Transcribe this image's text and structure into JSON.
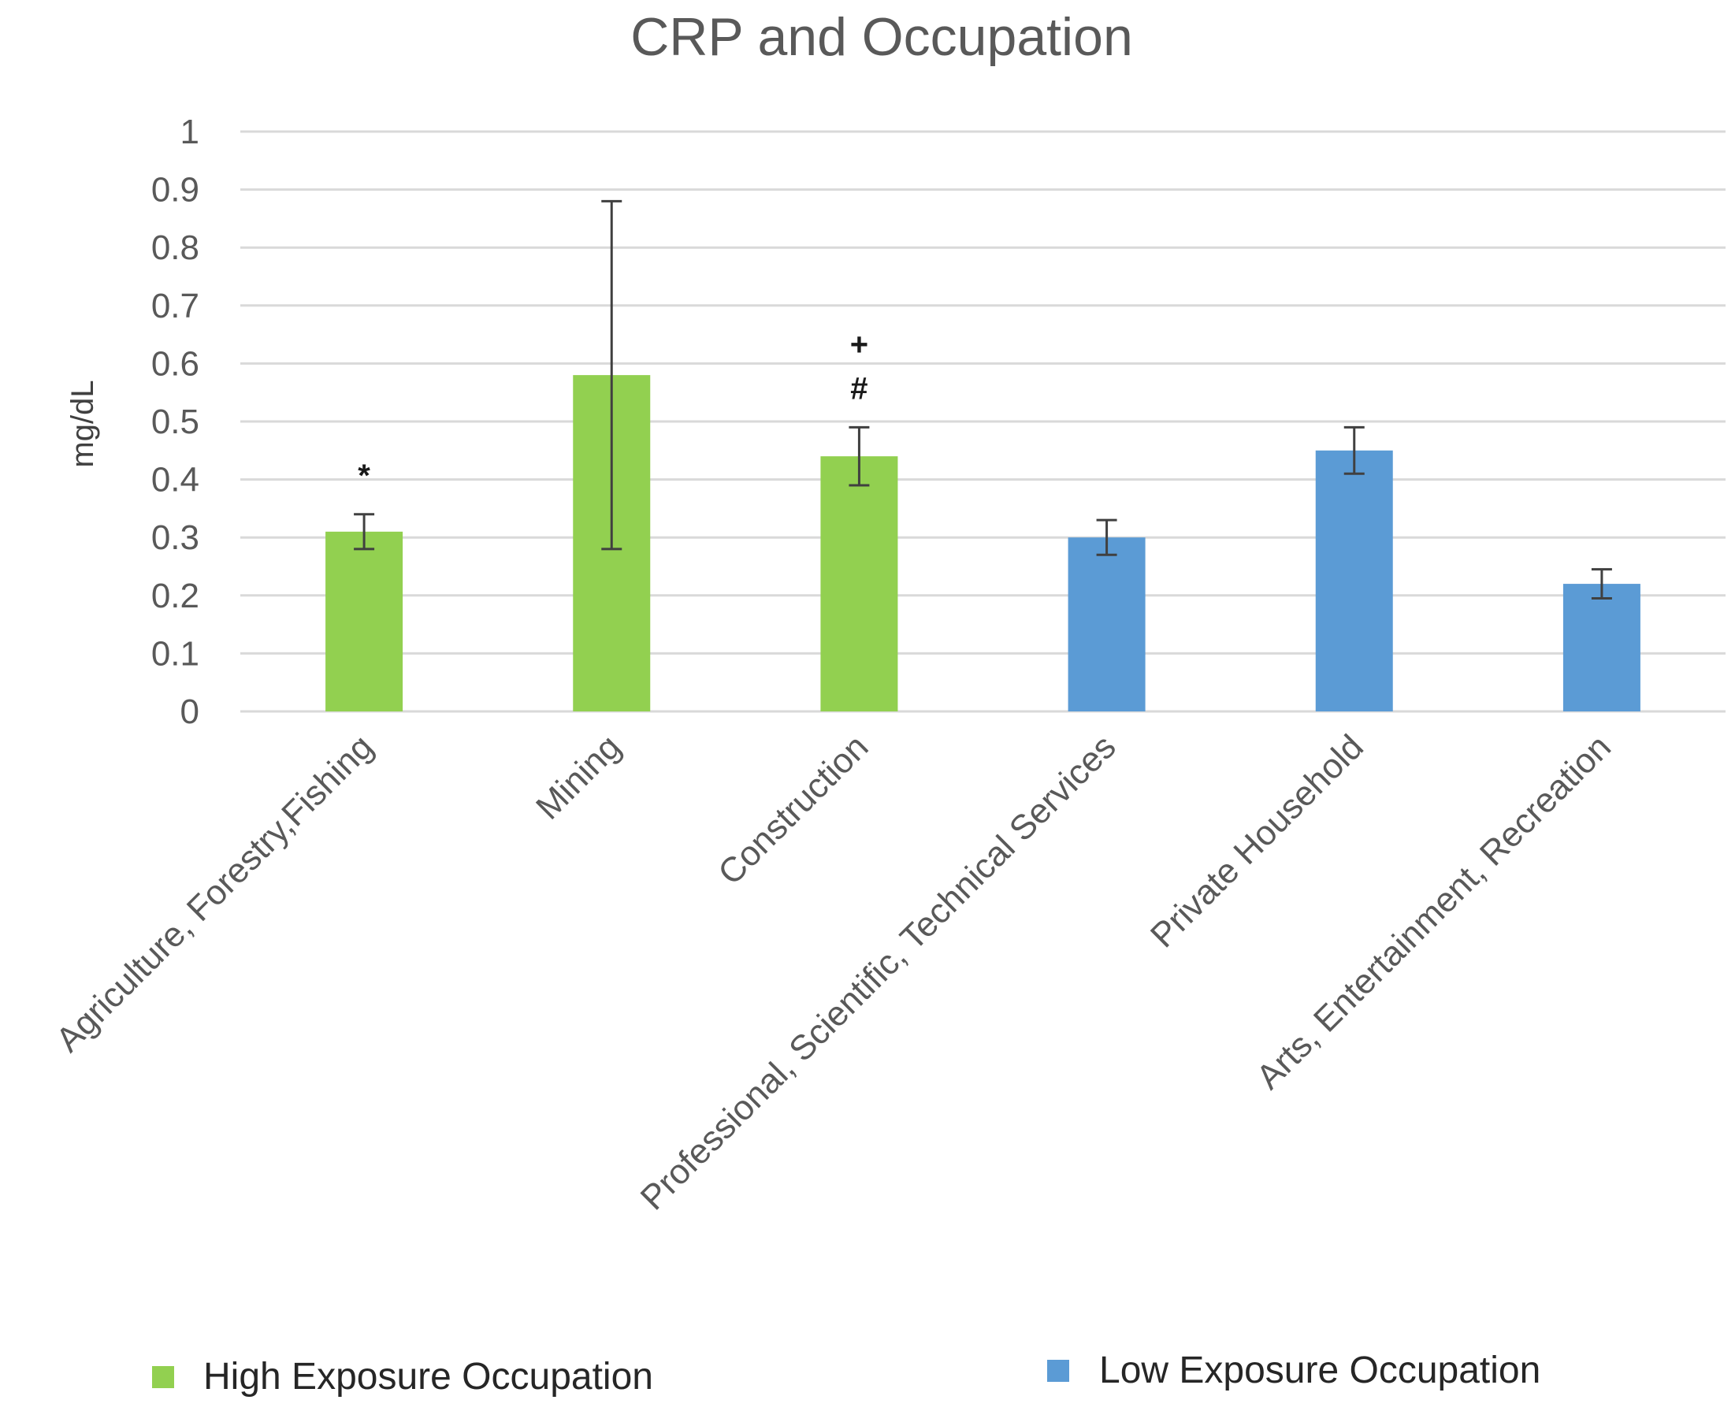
{
  "chart_data": {
    "type": "bar",
    "title": "CRP and Occupation",
    "xlabel": "",
    "ylabel": "mg/dL",
    "ylim": [
      0,
      1
    ],
    "yticks": [
      "0",
      "0.1",
      "0.2",
      "0.3",
      "0.4",
      "0.5",
      "0.6",
      "0.7",
      "0.8",
      "0.9",
      "1"
    ],
    "grid": true,
    "categories": [
      "Agriculture, Forestry,Fishing",
      "Mining",
      "Construction",
      "Professional, Scientific, Technical Services",
      "Private Household",
      "Arts, Entertainment, Recreation"
    ],
    "values": [
      0.31,
      0.58,
      0.44,
      0.3,
      0.45,
      0.22
    ],
    "error": [
      0.03,
      0.3,
      0.05,
      0.03,
      0.04,
      0.025
    ],
    "groups": [
      "high",
      "high",
      "high",
      "low",
      "low",
      "low"
    ],
    "annotations": [
      {
        "category_index": 0,
        "labels": [
          "*"
        ]
      },
      {
        "category_index": 2,
        "labels": [
          "+",
          "#"
        ]
      }
    ],
    "series": [
      {
        "key": "high",
        "name": "High Exposure Occupation",
        "color": "#92d050"
      },
      {
        "key": "low",
        "name": "Low Exposure Occupation",
        "color": "#5b9bd5"
      }
    ],
    "legend_position": "bottom"
  }
}
